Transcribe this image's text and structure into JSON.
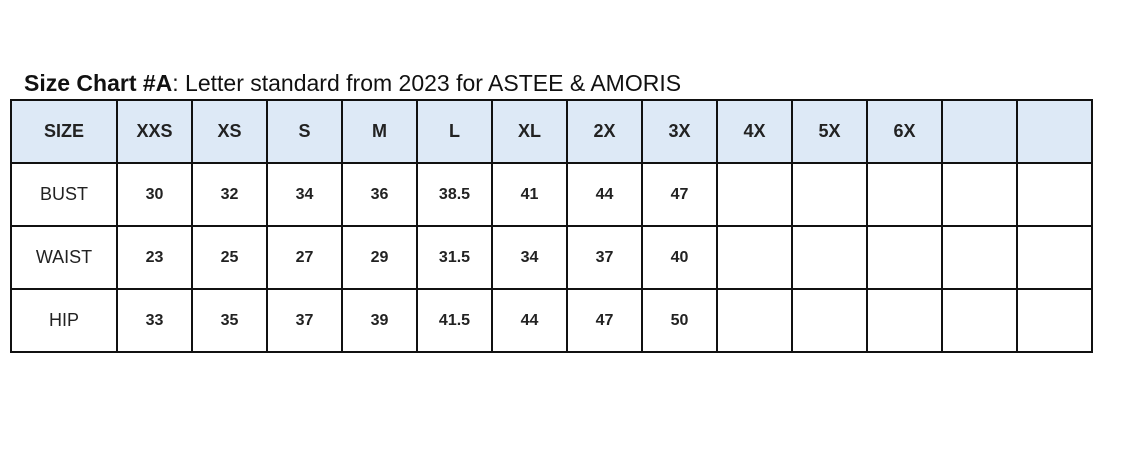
{
  "title": {
    "bold": "Size Chart #A",
    "rest": ": Letter standard from 2023 for ASTEE & AMORIS"
  },
  "header_bg": "#dde9f6",
  "table": {
    "headers": [
      "SIZE",
      "XXS",
      "XS",
      "S",
      "M",
      "L",
      "XL",
      "2X",
      "3X",
      "4X",
      "5X",
      "6X",
      "",
      ""
    ],
    "rows": [
      {
        "label": "BUST",
        "values": [
          "30",
          "32",
          "34",
          "36",
          "38.5",
          "41",
          "44",
          "47",
          "",
          "",
          "",
          "",
          ""
        ]
      },
      {
        "label": "WAIST",
        "values": [
          "23",
          "25",
          "27",
          "29",
          "31.5",
          "34",
          "37",
          "40",
          "",
          "",
          "",
          "",
          ""
        ]
      },
      {
        "label": "HIP",
        "values": [
          "33",
          "35",
          "37",
          "39",
          "41.5",
          "44",
          "47",
          "50",
          "",
          "",
          "",
          "",
          ""
        ]
      }
    ]
  }
}
